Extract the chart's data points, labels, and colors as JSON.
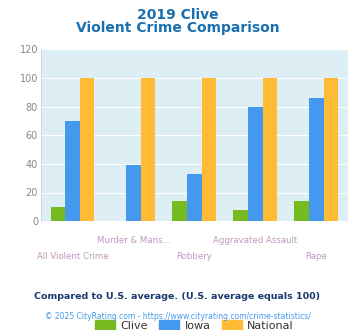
{
  "title_line1": "2019 Clive",
  "title_line2": "Violent Crime Comparison",
  "title_color": "#1a6faf",
  "categories": [
    "All Violent Crime",
    "Murder & Mans...",
    "Robbery",
    "Aggravated Assault",
    "Rape"
  ],
  "cat_labels_top": [
    "",
    "Murder & Mans...",
    "",
    "Aggravated Assault",
    ""
  ],
  "cat_labels_bot": [
    "All Violent Crime",
    "",
    "Robbery",
    "",
    "Rape"
  ],
  "clive": [
    10,
    0,
    14,
    8,
    14
  ],
  "iowa": [
    70,
    39,
    33,
    80,
    86
  ],
  "national": [
    100,
    100,
    100,
    100,
    100
  ],
  "clive_color": "#77bb22",
  "iowa_color": "#4499ee",
  "national_color": "#ffbb33",
  "bar_bg": "#ddeef4",
  "ylim": [
    0,
    120
  ],
  "yticks": [
    0,
    20,
    40,
    60,
    80,
    100,
    120
  ],
  "footnote1": "Compared to U.S. average. (U.S. average equals 100)",
  "footnote2": "© 2025 CityRating.com - https://www.cityrating.com/crime-statistics/",
  "footnote1_color": "#1a3a6f",
  "footnote2_color": "#4499ee",
  "legend_labels": [
    "Clive",
    "Iowa",
    "National"
  ],
  "xlabel_color": "#bb99bb"
}
